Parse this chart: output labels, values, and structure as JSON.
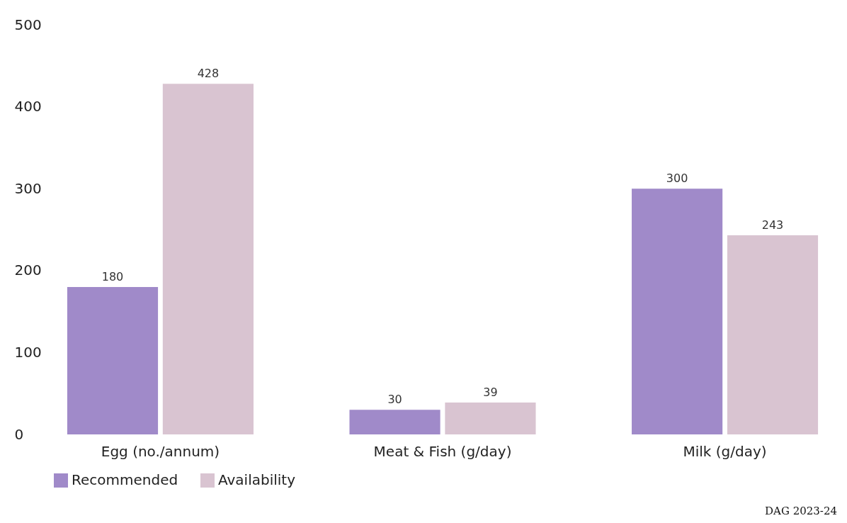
{
  "chart_data": {
    "type": "bar",
    "categories": [
      "Egg (no./annum)",
      "Meat & Fish (g/day)",
      "Milk (g/day)"
    ],
    "series": [
      {
        "name": "Recommended",
        "color": "#a08ac9",
        "values": [
          180,
          30,
          300
        ]
      },
      {
        "name": "Availability",
        "color": "#d9c4d1",
        "values": [
          428,
          39,
          243
        ]
      }
    ],
    "ylim": [
      0,
      500
    ],
    "yticks": [
      0,
      100,
      200,
      300,
      400,
      500
    ],
    "grid": false,
    "legend": "bottom",
    "data_labels": true,
    "annotations": [
      "DAG 2023-24"
    ]
  }
}
